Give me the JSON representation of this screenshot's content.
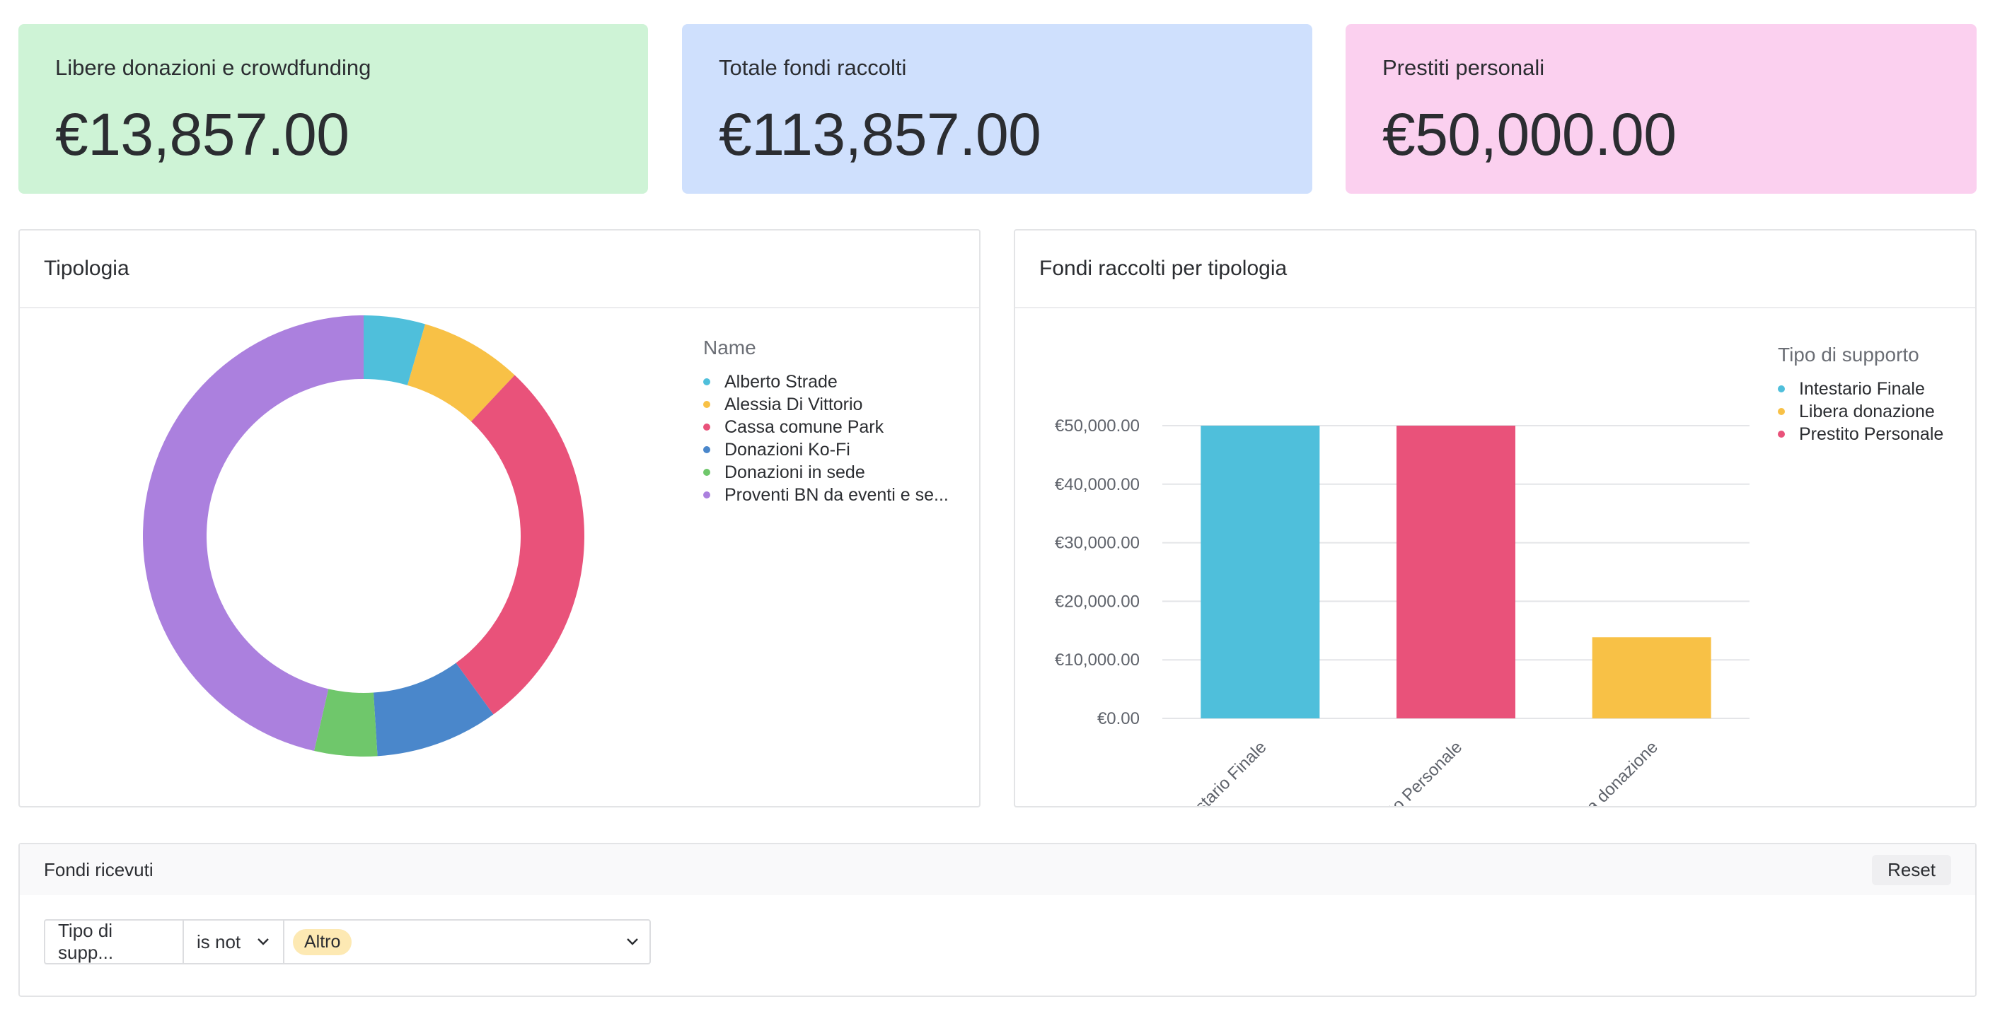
{
  "kpis": [
    {
      "label": "Libere donazioni e crowdfunding",
      "value": "€13,857.00",
      "bg": "#cef3d6"
    },
    {
      "label": "Totale fondi raccolti",
      "value": "€113,857.00",
      "bg": "#cfe0fd"
    },
    {
      "label": "Prestiti personali",
      "value": "€50,000.00",
      "bg": "#fbd0ef"
    }
  ],
  "donut_panel": {
    "title": "Tipologia",
    "legend_title": "Name",
    "items": [
      {
        "label": "Alberto Strade",
        "color": "#4fbfdb"
      },
      {
        "label": "Alessia Di Vittorio",
        "color": "#f8c146"
      },
      {
        "label": "Cassa comune Park",
        "color": "#e9527a"
      },
      {
        "label": "Donazioni Ko-Fi",
        "color": "#4a87cb"
      },
      {
        "label": "Donazioni in sede",
        "color": "#6fc76b"
      },
      {
        "label": "Proventi BN da eventi e se...",
        "color": "#ab80de"
      }
    ]
  },
  "bar_panel": {
    "title": "Fondi raccolti per tipologia",
    "legend_title": "Tipo di supporto",
    "items": [
      {
        "label": "Intestario Finale",
        "color": "#4fbfdb"
      },
      {
        "label": "Libera donazione",
        "color": "#f8c146"
      },
      {
        "label": "Prestito Personale",
        "color": "#e9527a"
      }
    ]
  },
  "chart_data": [
    {
      "type": "pie",
      "title": "Tipologia",
      "legend_title": "Name",
      "labels": [
        "Alberto Strade",
        "Alessia Di Vittorio",
        "Cassa comune Park",
        "Donazioni Ko-Fi",
        "Donazioni in sede",
        "Proventi BN da eventi e se..."
      ],
      "values": [
        4.5,
        7.5,
        28.0,
        9.0,
        4.6,
        46.4
      ],
      "colors": [
        "#4fbfdb",
        "#f8c146",
        "#e9527a",
        "#4a87cb",
        "#6fc76b",
        "#ab80de"
      ],
      "donut": true
    },
    {
      "type": "bar",
      "title": "Fondi raccolti per tipologia",
      "categories": [
        "Intestario Finale",
        "Prestito Personale",
        "Libera donazione"
      ],
      "values": [
        50000,
        50000,
        13857
      ],
      "colors": [
        "#4fbfdb",
        "#e9527a",
        "#f8c146"
      ],
      "ylim": [
        0,
        50000
      ],
      "yticks": [
        "€0.00",
        "€10,000.00",
        "€20,000.00",
        "€30,000.00",
        "€40,000.00",
        "€50,000.00"
      ],
      "legend_title": "Tipo di supporto",
      "grid": true
    }
  ],
  "bottom_panel": {
    "title": "Fondi ricevuti",
    "reset_label": "Reset",
    "filter_field": "Tipo di supp...",
    "filter_operator": "is not",
    "filter_value": "Altro"
  }
}
